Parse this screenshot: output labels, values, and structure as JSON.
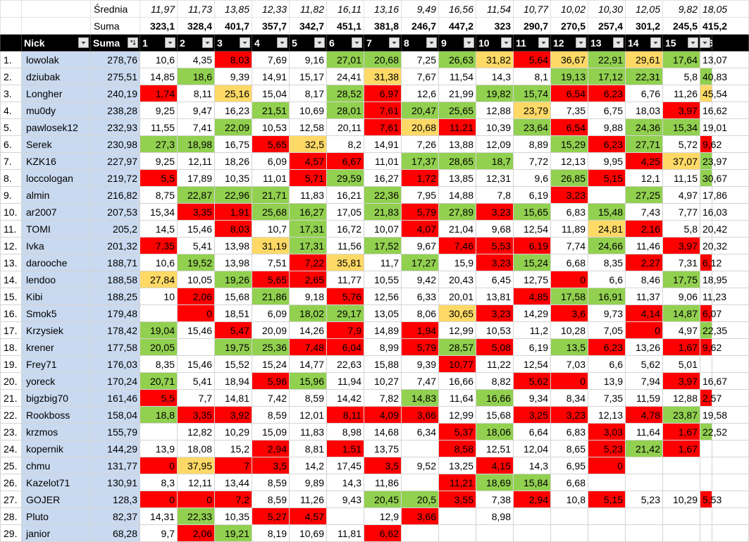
{
  "colors": {
    "green": "#92d050",
    "red": "#ff0000",
    "yellow": "#ffd966",
    "nick_fill": "#c9d9ef",
    "header_fill": "#000000"
  },
  "summary": {
    "avg_label": "Średnia",
    "sum_label": "Suma",
    "avg": [
      "11,97",
      "11,73",
      "13,85",
      "12,33",
      "11,82",
      "16,11",
      "13,16",
      "9,49",
      "16,56",
      "11,54",
      "10,77",
      "10,02",
      "10,30",
      "12,05",
      "9,82",
      "18,05"
    ],
    "sum": [
      "323,1",
      "328,4",
      "401,7",
      "357,7",
      "342,7",
      "451,1",
      "381,8",
      "246,7",
      "447,2",
      "323",
      "290,7",
      "270,5",
      "257,4",
      "301,2",
      "245,5",
      "415,2"
    ]
  },
  "header": {
    "nick": "Nick",
    "suma": "Suma",
    "rounds": [
      "1",
      "2",
      "3",
      "4",
      "5",
      "6",
      "7",
      "8",
      "9",
      "10",
      "11",
      "12",
      "13",
      "14",
      "15",
      "16"
    ],
    "filter_icon": "filter-dropdown-icon",
    "sort_icon": "sort-descending-icon"
  },
  "rows": [
    {
      "rank": "1.",
      "nick": "lowolak",
      "suma": "278,76",
      "s": [
        "10,6",
        "4,35",
        "8,03",
        "7,69",
        "9,16",
        "27,01",
        "20,68",
        "7,25",
        "26,63",
        "31,82",
        "5,64",
        "36,67",
        "22,91",
        "29,61",
        "17,64",
        "13,07"
      ],
      "c": [
        "",
        "",
        "r",
        "",
        "",
        "g",
        "g",
        "",
        "g",
        "y",
        "r",
        "y",
        "g",
        "y",
        "g",
        ""
      ]
    },
    {
      "rank": "2.",
      "nick": "dziubak",
      "suma": "275,51",
      "s": [
        "14,85",
        "18,6",
        "9,39",
        "14,91",
        "15,17",
        "24,41",
        "31,38",
        "7,67",
        "11,54",
        "14,3",
        "8,1",
        "19,13",
        "17,12",
        "22,31",
        "5,8",
        "40,83"
      ],
      "c": [
        "",
        "g",
        "",
        "",
        "",
        "",
        "y",
        "",
        "",
        "",
        "",
        "g",
        "g",
        "g",
        "",
        "g"
      ]
    },
    {
      "rank": "3.",
      "nick": "Longher",
      "suma": "240,19",
      "s": [
        "1,74",
        "8,11",
        "25,16",
        "15,04",
        "8,17",
        "28,52",
        "6,97",
        "12,6",
        "21,99",
        "19,82",
        "15,74",
        "6,54",
        "6,23",
        "6,76",
        "11,26",
        "45,54"
      ],
      "c": [
        "r",
        "",
        "y",
        "",
        "",
        "g",
        "r",
        "",
        "",
        "g",
        "g",
        "r",
        "r",
        "",
        "",
        "y"
      ]
    },
    {
      "rank": "4.",
      "nick": "mu0dy",
      "suma": "238,28",
      "s": [
        "9,25",
        "9,47",
        "16,23",
        "21,51",
        "10,69",
        "28,01",
        "7,61",
        "20,47",
        "25,65",
        "12,88",
        "23,79",
        "7,35",
        "6,75",
        "18,03",
        "3,97",
        "16,62"
      ],
      "c": [
        "",
        "",
        "",
        "g",
        "",
        "g",
        "r",
        "g",
        "g",
        "",
        "y",
        "",
        "",
        "",
        "r",
        ""
      ]
    },
    {
      "rank": "5.",
      "nick": "pawlosek12",
      "suma": "232,93",
      "s": [
        "11,55",
        "7,41",
        "22,09",
        "10,53",
        "12,58",
        "20,11",
        "7,61",
        "20,68",
        "11,21",
        "10,39",
        "23,64",
        "6,54",
        "9,88",
        "24,36",
        "15,34",
        "19,01"
      ],
      "c": [
        "",
        "",
        "g",
        "",
        "",
        "",
        "r",
        "y",
        "r",
        "",
        "g",
        "r",
        "",
        "g",
        "g",
        ""
      ]
    },
    {
      "rank": "6.",
      "nick": "Serek",
      "suma": "230,98",
      "s": [
        "27,3",
        "18,98",
        "16,75",
        "5,65",
        "32,5",
        "8,2",
        "14,91",
        "7,26",
        "13,88",
        "12,09",
        "8,89",
        "15,29",
        "6,23",
        "27,71",
        "5,72",
        "9,62"
      ],
      "c": [
        "g",
        "g",
        "",
        "r",
        "y",
        "",
        "",
        "",
        "",
        "",
        "",
        "g",
        "r",
        "g",
        "",
        "r"
      ]
    },
    {
      "rank": "7.",
      "nick": "KZK16",
      "suma": "227,97",
      "s": [
        "9,25",
        "12,11",
        "18,26",
        "6,09",
        "4,57",
        "6,67",
        "11,01",
        "17,37",
        "28,65",
        "18,7",
        "7,72",
        "12,13",
        "9,95",
        "4,25",
        "37,07",
        "23,97"
      ],
      "c": [
        "",
        "",
        "",
        "",
        "r",
        "r",
        "",
        "g",
        "g",
        "g",
        "",
        "",
        "",
        "r",
        "y",
        "g"
      ]
    },
    {
      "rank": "8.",
      "nick": "loccologan",
      "suma": "219,72",
      "s": [
        "5,5",
        "17,89",
        "10,35",
        "11,01",
        "5,71",
        "29,59",
        "16,27",
        "1,72",
        "13,85",
        "12,31",
        "9,6",
        "26,85",
        "5,15",
        "12,1",
        "11,15",
        "30,67"
      ],
      "c": [
        "r",
        "",
        "",
        "",
        "r",
        "g",
        "",
        "r",
        "",
        "",
        "",
        "g",
        "r",
        "",
        "",
        "g"
      ]
    },
    {
      "rank": "9.",
      "nick": "almin",
      "suma": "216,82",
      "s": [
        "8,75",
        "22,87",
        "22,96",
        "21,71",
        "11,83",
        "16,21",
        "22,36",
        "7,95",
        "14,88",
        "7,8",
        "6,19",
        "3,23",
        "",
        "27,25",
        "4,97",
        "17,86"
      ],
      "c": [
        "",
        "g",
        "g",
        "g",
        "",
        "",
        "g",
        "",
        "",
        "",
        "",
        "r",
        "",
        "g",
        "",
        ""
      ]
    },
    {
      "rank": "10.",
      "nick": "ar2007",
      "suma": "207,53",
      "s": [
        "15,34",
        "3,35",
        "1,91",
        "25,68",
        "16,27",
        "17,05",
        "21,83",
        "5,79",
        "27,89",
        "3,23",
        "15,65",
        "6,83",
        "15,48",
        "7,43",
        "7,77",
        "16,03"
      ],
      "c": [
        "",
        "r",
        "r",
        "g",
        "g",
        "",
        "g",
        "r",
        "g",
        "r",
        "g",
        "",
        "g",
        "",
        "",
        ""
      ]
    },
    {
      "rank": "11.",
      "nick": "TOMI",
      "suma": "205,2",
      "s": [
        "14,5",
        "15,46",
        "8,03",
        "10,7",
        "17,31",
        "16,72",
        "10,07",
        "4,07",
        "21,04",
        "9,68",
        "12,54",
        "11,89",
        "24,81",
        "2,16",
        "5,8",
        "20,42"
      ],
      "c": [
        "",
        "",
        "r",
        "",
        "g",
        "",
        "",
        "r",
        "",
        "",
        "",
        "",
        "y",
        "r",
        "",
        ""
      ]
    },
    {
      "rank": "12.",
      "nick": "Ivka",
      "suma": "201,32",
      "s": [
        "7,35",
        "5,41",
        "13,98",
        "31,19",
        "17,31",
        "11,56",
        "17,52",
        "9,67",
        "7,46",
        "5,53",
        "6,19",
        "7,74",
        "24,66",
        "11,46",
        "3,97",
        "20,32"
      ],
      "c": [
        "r",
        "",
        "",
        "y",
        "g",
        "",
        "g",
        "",
        "r",
        "r",
        "r",
        "",
        "g",
        "",
        "r",
        ""
      ]
    },
    {
      "rank": "13.",
      "nick": "darooche",
      "suma": "188,71",
      "s": [
        "10,6",
        "19,52",
        "13,98",
        "7,51",
        "7,22",
        "35,81",
        "11,7",
        "17,27",
        "15,9",
        "3,23",
        "15,24",
        "6,68",
        "8,35",
        "2,27",
        "7,31",
        "6,12"
      ],
      "c": [
        "",
        "g",
        "",
        "",
        "r",
        "y",
        "",
        "g",
        "",
        "r",
        "g",
        "",
        "",
        "r",
        "",
        "r"
      ]
    },
    {
      "rank": "14.",
      "nick": "lendoo",
      "suma": "188,58",
      "s": [
        "27,84",
        "10,05",
        "19,26",
        "5,65",
        "2,65",
        "11,77",
        "10,55",
        "9,42",
        "20,43",
        "6,45",
        "12,75",
        "0",
        "6,6",
        "8,46",
        "17,75",
        "18,95"
      ],
      "c": [
        "y",
        "",
        "g",
        "r",
        "r",
        "",
        "",
        "",
        "",
        "",
        "",
        "r",
        "",
        "",
        "g",
        ""
      ]
    },
    {
      "rank": "15.",
      "nick": "Kibi",
      "suma": "188,25",
      "s": [
        "10",
        "2,06",
        "15,68",
        "21,86",
        "9,18",
        "5,76",
        "12,56",
        "6,33",
        "20,01",
        "13,81",
        "4,85",
        "17,58",
        "16,91",
        "11,37",
        "9,06",
        "11,23"
      ],
      "c": [
        "",
        "r",
        "",
        "g",
        "",
        "r",
        "",
        "",
        "",
        "",
        "r",
        "g",
        "g",
        "",
        "",
        ""
      ]
    },
    {
      "rank": "16.",
      "nick": "Smok5",
      "suma": "179,48",
      "s": [
        "",
        "0",
        "18,51",
        "6,09",
        "18,02",
        "29,17",
        "13,05",
        "8,06",
        "30,65",
        "3,23",
        "14,29",
        "3,6",
        "9,73",
        "4,14",
        "14,87",
        "6,07"
      ],
      "c": [
        "",
        "r",
        "",
        "",
        "g",
        "g",
        "",
        "",
        "y",
        "r",
        "",
        "r",
        "",
        "r",
        "g",
        "r"
      ]
    },
    {
      "rank": "17.",
      "nick": "Krzysiek",
      "suma": "178,42",
      "s": [
        "19,04",
        "15,46",
        "5,47",
        "20,09",
        "14,26",
        "7,9",
        "14,89",
        "1,94",
        "12,99",
        "10,53",
        "11,2",
        "10,28",
        "7,05",
        "0",
        "4,97",
        "22,35"
      ],
      "c": [
        "g",
        "",
        "r",
        "",
        "",
        "r",
        "",
        "r",
        "",
        "",
        "",
        "",
        "",
        "r",
        "",
        "g"
      ]
    },
    {
      "rank": "18.",
      "nick": "krener",
      "suma": "177,58",
      "s": [
        "20,05",
        "",
        "19,75",
        "25,36",
        "7,48",
        "6,04",
        "8,99",
        "5,79",
        "28,57",
        "5,08",
        "6,19",
        "13,5",
        "6,23",
        "13,26",
        "1,67",
        "9,62"
      ],
      "c": [
        "g",
        "",
        "g",
        "g",
        "r",
        "r",
        "",
        "r",
        "g",
        "r",
        "",
        "g",
        "r",
        "",
        "r",
        "r"
      ]
    },
    {
      "rank": "19.",
      "nick": "Frey71",
      "suma": "176,03",
      "s": [
        "8,35",
        "15,46",
        "15,52",
        "15,24",
        "14,77",
        "22,63",
        "15,88",
        "9,39",
        "10,77",
        "11,22",
        "12,54",
        "7,03",
        "6,6",
        "5,62",
        "5,01",
        ""
      ],
      "c": [
        "",
        "",
        "",
        "",
        "",
        "",
        "",
        "",
        "r",
        "",
        "",
        "",
        "",
        "",
        "",
        ""
      ]
    },
    {
      "rank": "20.",
      "nick": "yoreck",
      "suma": "170,24",
      "s": [
        "20,71",
        "5,41",
        "18,94",
        "5,96",
        "15,96",
        "11,94",
        "10,27",
        "7,47",
        "16,66",
        "8,82",
        "5,62",
        "0",
        "13,9",
        "7,94",
        "3,97",
        "16,67"
      ],
      "c": [
        "g",
        "",
        "",
        "r",
        "g",
        "",
        "",
        "",
        "",
        "",
        "r",
        "r",
        "",
        "",
        "r",
        ""
      ]
    },
    {
      "rank": "21.",
      "nick": "bigzbig70",
      "suma": "161,46",
      "s": [
        "5,5",
        "7,7",
        "14,81",
        "7,42",
        "8,59",
        "14,42",
        "7,82",
        "14,83",
        "11,64",
        "16,66",
        "9,34",
        "8,34",
        "7,35",
        "11,59",
        "12,88",
        "2,57"
      ],
      "c": [
        "r",
        "",
        "",
        "",
        "",
        "",
        "",
        "g",
        "",
        "g",
        "",
        "",
        "",
        "",
        "",
        "r"
      ]
    },
    {
      "rank": "22.",
      "nick": "Rookboss",
      "suma": "158,04",
      "s": [
        "18,8",
        "3,35",
        "3,92",
        "8,59",
        "12,01",
        "8,11",
        "4,09",
        "3,66",
        "12,99",
        "15,68",
        "3,25",
        "3,23",
        "12,13",
        "4,78",
        "23,87",
        "19,58"
      ],
      "c": [
        "g",
        "r",
        "r",
        "",
        "",
        "r",
        "r",
        "r",
        "",
        "",
        "r",
        "r",
        "",
        "r",
        "g",
        ""
      ]
    },
    {
      "rank": "23.",
      "nick": "krzmos",
      "suma": "155,79",
      "s": [
        "",
        "12,82",
        "10,29",
        "15,09",
        "11,83",
        "8,98",
        "14,68",
        "6,34",
        "5,37",
        "18,06",
        "6,64",
        "6,83",
        "3,03",
        "11,64",
        "1,67",
        "22,52"
      ],
      "c": [
        "",
        "",
        "",
        "",
        "",
        "",
        "",
        "",
        "r",
        "g",
        "",
        "",
        "r",
        "",
        "r",
        "g"
      ]
    },
    {
      "rank": "24.",
      "nick": "kopernik",
      "suma": "144,29",
      "s": [
        "13,9",
        "18,08",
        "15,2",
        "2,94",
        "8,81",
        "1,51",
        "13,75",
        "",
        "8,58",
        "12,51",
        "12,04",
        "8,65",
        "5,23",
        "21,42",
        "1,67",
        ""
      ],
      "c": [
        "",
        "",
        "",
        "r",
        "",
        "r",
        "",
        "",
        "r",
        "",
        "",
        "",
        "r",
        "g",
        "r",
        ""
      ]
    },
    {
      "rank": "25.",
      "nick": "chmu",
      "suma": "131,77",
      "s": [
        "0",
        "37,95",
        "7",
        "3,5",
        "14,2",
        "17,45",
        "3,5",
        "9,52",
        "13,25",
        "4,15",
        "14,3",
        "6,95",
        "0",
        "",
        "",
        ""
      ],
      "c": [
        "r",
        "y",
        "r",
        "r",
        "",
        "",
        "r",
        "",
        "",
        "r",
        "",
        "",
        "r",
        "",
        "",
        ""
      ]
    },
    {
      "rank": "26.",
      "nick": "Kazelot71",
      "suma": "130,91",
      "s": [
        "8,3",
        "12,11",
        "13,44",
        "8,59",
        "9,89",
        "14,3",
        "11,86",
        "",
        "11,21",
        "18,69",
        "15,84",
        "6,68",
        "",
        "",
        "",
        ""
      ],
      "c": [
        "",
        "",
        "",
        "",
        "",
        "",
        "",
        "",
        "r",
        "g",
        "g",
        "",
        "",
        "",
        "",
        ""
      ]
    },
    {
      "rank": "27.",
      "nick": "GOJER",
      "suma": "128,3",
      "s": [
        "0",
        "0",
        "7,2",
        "8,59",
        "11,26",
        "9,43",
        "20,45",
        "20,5",
        "3,55",
        "7,38",
        "2,94",
        "10,8",
        "5,15",
        "5,23",
        "10,29",
        "5,53"
      ],
      "c": [
        "r",
        "r",
        "r",
        "",
        "",
        "",
        "g",
        "g",
        "r",
        "",
        "r",
        "",
        "r",
        "",
        "",
        "r"
      ]
    },
    {
      "rank": "28.",
      "nick": "Pluto",
      "suma": "82,37",
      "s": [
        "14,31",
        "22,33",
        "10,35",
        "5,27",
        "4,57",
        "",
        "12,9",
        "3,66",
        "",
        "8,98",
        "",
        "",
        "",
        "",
        "",
        ""
      ],
      "c": [
        "",
        "g",
        "",
        "r",
        "r",
        "",
        "",
        "r",
        "",
        "",
        "",
        "",
        "",
        "",
        "",
        ""
      ]
    },
    {
      "rank": "29.",
      "nick": "janior",
      "suma": "68,28",
      "s": [
        "9,7",
        "2,06",
        "19,21",
        "8,19",
        "10,69",
        "11,81",
        "6,62",
        "",
        "",
        "",
        "",
        "",
        "",
        "",
        "",
        ""
      ],
      "c": [
        "",
        "r",
        "g",
        "",
        "",
        "",
        "r",
        "",
        "",
        "",
        "",
        "",
        "",
        "",
        "",
        ""
      ]
    }
  ]
}
